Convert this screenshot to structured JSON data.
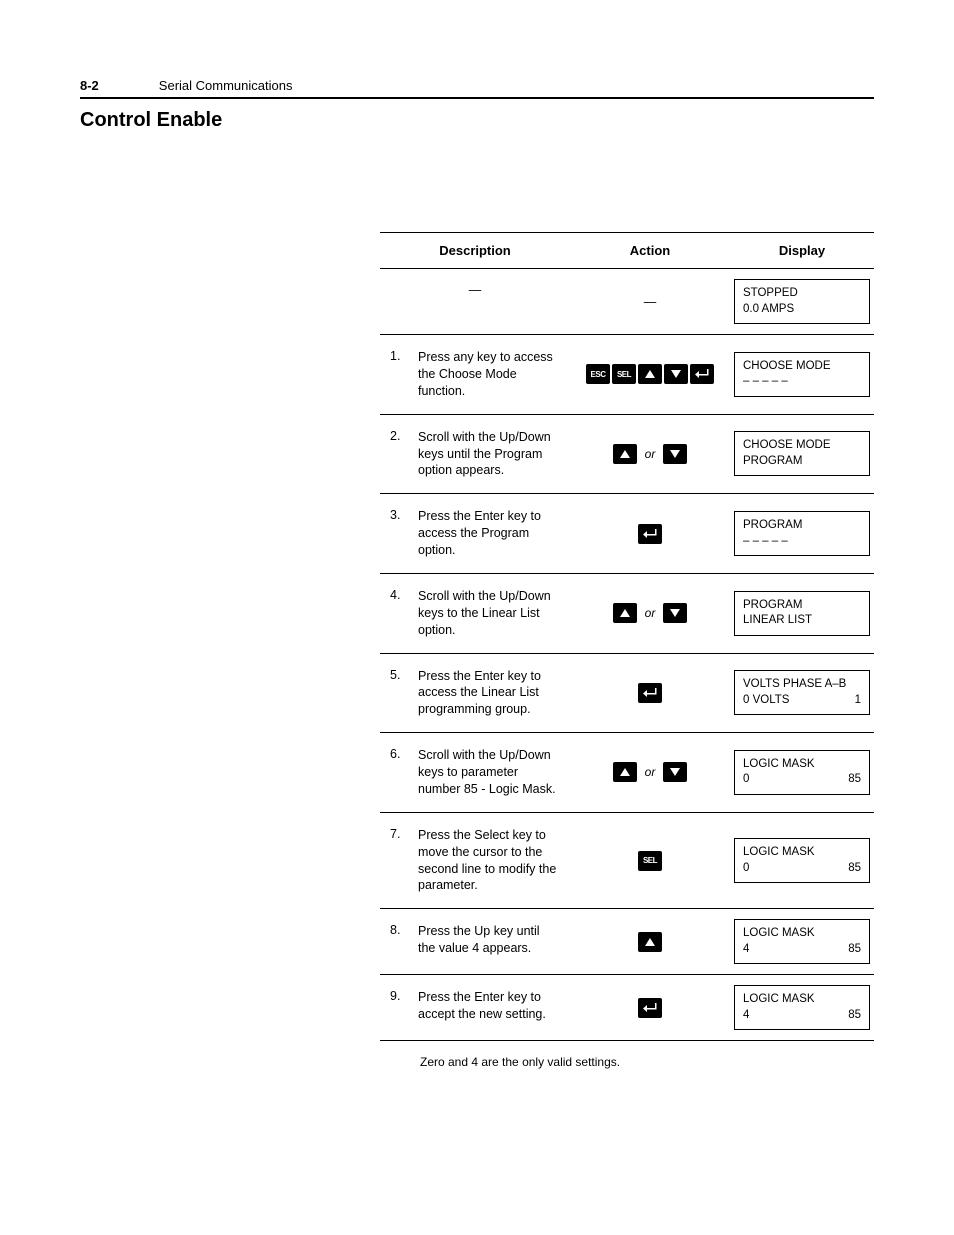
{
  "header": {
    "page_number": "8-2",
    "chapter": "Serial Communications"
  },
  "section_title": "Control Enable",
  "table": {
    "columns": {
      "description": "Description",
      "action": "Action",
      "display": "Display"
    },
    "rows": [
      {
        "step": "",
        "desc_dash": "—",
        "action_dash": "—",
        "display": {
          "line1": "STOPPED",
          "line2": "0.0 AMPS"
        }
      },
      {
        "step": "1.",
        "desc": "Press any key to access the Choose Mode function.",
        "action_keys": [
          "ESC",
          "SEL",
          "UP",
          "DOWN",
          "ENTER"
        ],
        "display": {
          "line1": "CHOOSE MODE",
          "line2": "– – – – –"
        }
      },
      {
        "step": "2.",
        "desc": "Scroll with the Up/Down keys until the Program option appears.",
        "action_keys": [
          "UP",
          "or",
          "DOWN"
        ],
        "display": {
          "line1": "CHOOSE MODE",
          "line2": "PROGRAM"
        }
      },
      {
        "step": "3.",
        "desc": "Press the Enter key to access the Program option.",
        "action_keys": [
          "ENTER"
        ],
        "display": {
          "line1": "PROGRAM",
          "line2": "– – – – –"
        }
      },
      {
        "step": "4.",
        "desc": "Scroll with the Up/Down keys to the Linear List option.",
        "action_keys": [
          "UP",
          "or",
          "DOWN"
        ],
        "display": {
          "line1": "PROGRAM",
          "line2": "LINEAR LIST"
        }
      },
      {
        "step": "5.",
        "desc": "Press the Enter key to access the Linear List programming group.",
        "action_keys": [
          "ENTER"
        ],
        "display": {
          "line1": "VOLTS PHASE A–B",
          "line2_left": "0 VOLTS",
          "line2_right": "1"
        }
      },
      {
        "step": "6.",
        "desc": "Scroll with the Up/Down keys to parameter number 85 - Logic Mask.",
        "action_keys": [
          "UP",
          "or",
          "DOWN"
        ],
        "display": {
          "line1": "LOGIC MASK",
          "line2_left": "0",
          "line2_right": "85"
        }
      },
      {
        "step": "7.",
        "desc": "Press the Select key to move the cursor to the second line to modify the parameter.",
        "action_keys": [
          "SEL"
        ],
        "display": {
          "line1": "LOGIC MASK",
          "line2_left": "0",
          "line2_right": "85"
        }
      },
      {
        "step": "8.",
        "desc": "Press the Up key until the value 4 appears.",
        "action_keys": [
          "UP"
        ],
        "display": {
          "line1": "LOGIC MASK",
          "line2_left": "4",
          "line2_right": "85"
        }
      },
      {
        "step": "9.",
        "desc": "Press the Enter key to accept the new setting.",
        "action_keys": [
          "ENTER"
        ],
        "display": {
          "line1": "LOGIC MASK",
          "line2_left": "4",
          "line2_right": "85"
        }
      }
    ]
  },
  "footnote": "Zero and 4 are the only valid settings.",
  "key_labels": {
    "ESC": "ESC",
    "SEL": "SEL",
    "or": "or"
  }
}
